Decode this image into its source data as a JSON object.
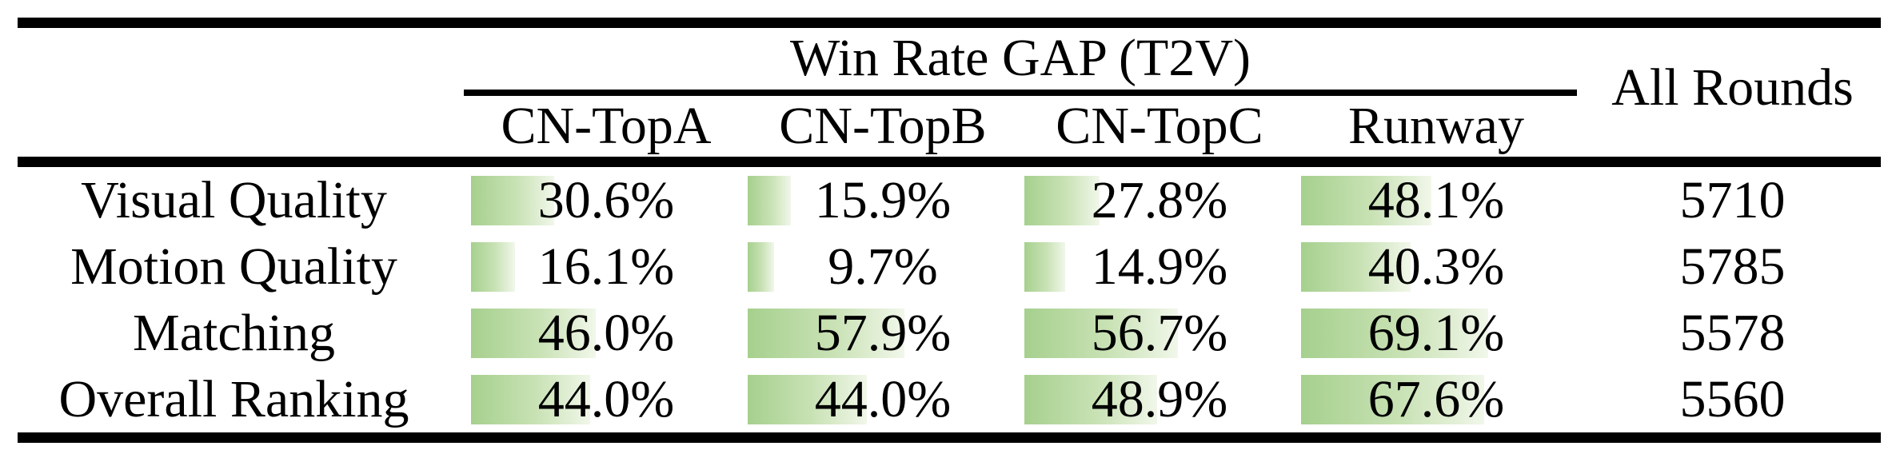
{
  "table": {
    "title": "Win Rate GAP (T2V)",
    "all_rounds_header": "All Rounds",
    "columns": [
      "CN-TopA",
      "CN-TopB",
      "CN-TopC",
      "Runway"
    ],
    "rows": [
      {
        "label": "Visual Quality",
        "cells": [
          {
            "display": "30.6%",
            "value": 30.6
          },
          {
            "display": "15.9%",
            "value": 15.9
          },
          {
            "display": "27.8%",
            "value": 27.8
          },
          {
            "display": "48.1%",
            "value": 48.1
          }
        ],
        "all_rounds": "5710"
      },
      {
        "label": "Motion Quality",
        "cells": [
          {
            "display": "16.1%",
            "value": 16.1
          },
          {
            "display": "9.7%",
            "value": 9.7
          },
          {
            "display": "14.9%",
            "value": 14.9
          },
          {
            "display": "40.3%",
            "value": 40.3
          }
        ],
        "all_rounds": "5785"
      },
      {
        "label": "Matching",
        "cells": [
          {
            "display": "46.0%",
            "value": 46.0
          },
          {
            "display": "57.9%",
            "value": 57.9
          },
          {
            "display": "56.7%",
            "value": 56.7
          },
          {
            "display": "69.1%",
            "value": 69.1
          }
        ],
        "all_rounds": "5578"
      },
      {
        "label": "Overall Ranking",
        "cells": [
          {
            "display": "44.0%",
            "value": 44.0
          },
          {
            "display": "44.0%",
            "value": 44.0
          },
          {
            "display": "48.9%",
            "value": 48.9
          },
          {
            "display": "67.6%",
            "value": 67.6
          }
        ],
        "all_rounds": "5560"
      }
    ],
    "colors": {
      "bar_green": "#a6d08e",
      "bar_fade": "#f1f7ea",
      "rule": "#000000",
      "background": "#ffffff"
    }
  },
  "chart_data": {
    "type": "table",
    "title": "Win Rate GAP (T2V)",
    "categories": [
      "Visual Quality",
      "Motion Quality",
      "Matching",
      "Overall Ranking"
    ],
    "series": [
      {
        "name": "CN-TopA",
        "values": [
          30.6,
          16.1,
          46.0,
          44.0
        ]
      },
      {
        "name": "CN-TopB",
        "values": [
          15.9,
          9.7,
          57.9,
          44.0
        ]
      },
      {
        "name": "CN-TopC",
        "values": [
          27.8,
          14.9,
          56.7,
          48.9
        ]
      },
      {
        "name": "Runway",
        "values": [
          48.1,
          40.3,
          69.1,
          67.6
        ]
      }
    ],
    "all_rounds": {
      "name": "All Rounds",
      "values": [
        5710,
        5785,
        5578,
        5560
      ]
    },
    "unit": "%",
    "bar_scale": [
      0,
      100
    ],
    "notes": "in-cell horizontal green gradient bars proportional to percentage"
  }
}
